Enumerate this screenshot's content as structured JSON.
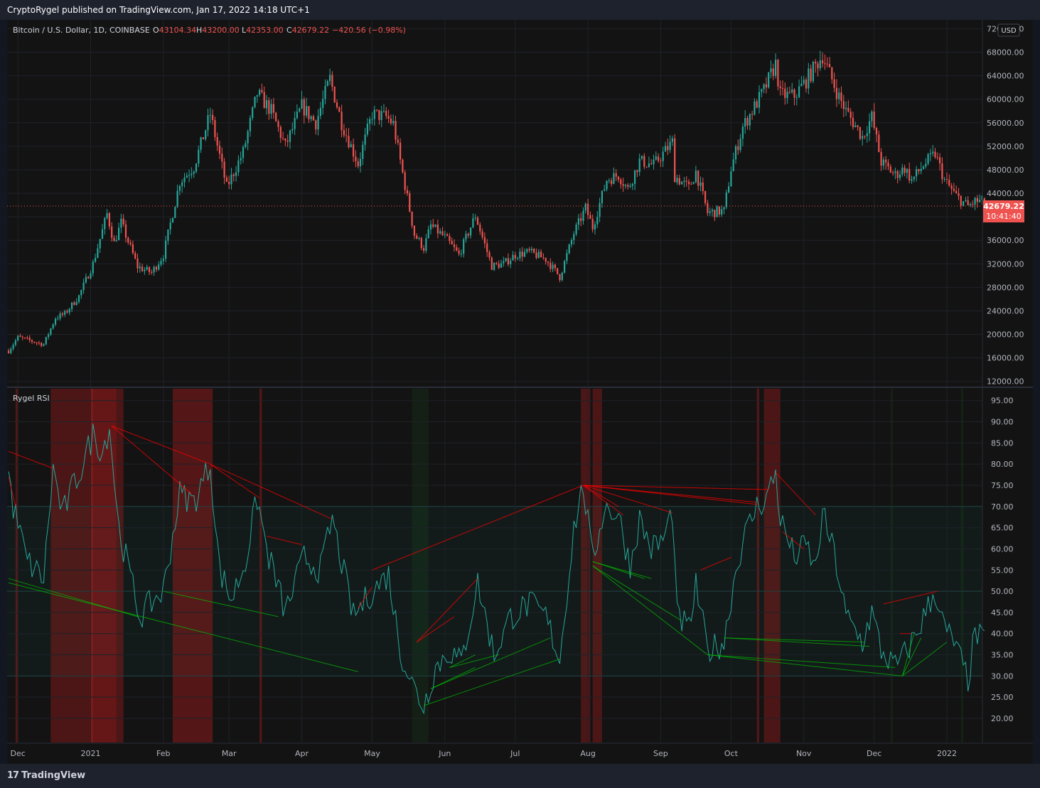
{
  "header": {
    "published": "CryptoRygel published on TradingView.com, Jan 17, 2022 14:18 UTC+1"
  },
  "footer": {
    "brand": "TradingView",
    "logo_glyph": "17"
  },
  "colors": {
    "up": "#26a69a",
    "down": "#ef5350",
    "rsi": "#26a69a",
    "bear_div": "#ff0000",
    "bull_div": "#00c000"
  },
  "main_pane": {
    "symbol": "Bitcoin / U.S. Dollar, 1D, COINBASE",
    "o_label": "O",
    "o_value": "43104.34",
    "h_label": "H",
    "h_value": "43200.00",
    "l_label": "L",
    "l_value": "42353.00",
    "c_label": "C",
    "c_value": "42679.22",
    "change": "−420.56 (−0.98%)",
    "currency": "USD",
    "last_price": "42679.22",
    "countdown": "10:41:40"
  },
  "rsi_pane": {
    "title": "Rygel RSI"
  },
  "chart_data": [
    {
      "type": "candlestick",
      "title": "Bitcoin / U.S. Dollar, 1D, COINBASE",
      "ylim": [
        12000,
        72000
      ],
      "y_ticks": [
        "72000.00",
        "68000.00",
        "64000.00",
        "60000.00",
        "56000.00",
        "52000.00",
        "48000.00",
        "44000.00",
        "40000.00",
        "36000.00",
        "32000.00",
        "28000.00",
        "24000.00",
        "20000.00",
        "16000.00",
        "12000.00"
      ],
      "x_ticks": [
        "Dec",
        "2021",
        "Feb",
        "Mar",
        "Apr",
        "May",
        "Jun",
        "Jul",
        "Aug",
        "Sep",
        "Oct",
        "Nov",
        "Dec",
        "2022"
      ],
      "close_anchors": [
        [
          "2020-11-27",
          17200
        ],
        [
          "2020-12-01",
          19500
        ],
        [
          "2020-12-12",
          18300
        ],
        [
          "2020-12-17",
          22800
        ],
        [
          "2020-12-21",
          23500
        ],
        [
          "2020-12-27",
          26500
        ],
        [
          "2021-01-02",
          32000
        ],
        [
          "2021-01-08",
          40500
        ],
        [
          "2021-01-11",
          35500
        ],
        [
          "2021-01-14",
          39000
        ],
        [
          "2021-01-21",
          31500
        ],
        [
          "2021-01-27",
          30500
        ],
        [
          "2021-02-01",
          33500
        ],
        [
          "2021-02-08",
          46000
        ],
        [
          "2021-02-14",
          48500
        ],
        [
          "2021-02-21",
          57500
        ],
        [
          "2021-02-28",
          45000
        ],
        [
          "2021-03-07",
          51000
        ],
        [
          "2021-03-13",
          61000
        ],
        [
          "2021-03-19",
          58000
        ],
        [
          "2021-03-25",
          52000
        ],
        [
          "2021-04-01",
          58800
        ],
        [
          "2021-04-07",
          56000
        ],
        [
          "2021-04-13",
          63500
        ],
        [
          "2021-04-18",
          56000
        ],
        [
          "2021-04-25",
          49000
        ],
        [
          "2021-05-01",
          57500
        ],
        [
          "2021-05-07",
          57000
        ],
        [
          "2021-05-10",
          55800
        ],
        [
          "2021-05-13",
          49500
        ],
        [
          "2021-05-19",
          37000
        ],
        [
          "2021-05-23",
          34700
        ],
        [
          "2021-05-26",
          38500
        ],
        [
          "2021-06-01",
          36500
        ],
        [
          "2021-06-07",
          33500
        ],
        [
          "2021-06-14",
          40200
        ],
        [
          "2021-06-21",
          31600
        ],
        [
          "2021-06-26",
          32000
        ],
        [
          "2021-07-01",
          33500
        ],
        [
          "2021-07-07",
          34000
        ],
        [
          "2021-07-14",
          32800
        ],
        [
          "2021-07-20",
          29800
        ],
        [
          "2021-07-26",
          37200
        ],
        [
          "2021-07-31",
          41500
        ],
        [
          "2021-08-03",
          38200
        ],
        [
          "2021-08-09",
          46300
        ],
        [
          "2021-08-14",
          47100
        ],
        [
          "2021-08-18",
          44700
        ],
        [
          "2021-08-23",
          49500
        ],
        [
          "2021-08-29",
          48800
        ],
        [
          "2021-09-06",
          52700
        ],
        [
          "2021-09-07",
          46900
        ],
        [
          "2021-09-13",
          44900
        ],
        [
          "2021-09-16",
          47700
        ],
        [
          "2021-09-21",
          40700
        ],
        [
          "2021-09-28",
          41000
        ],
        [
          "2021-10-01",
          48200
        ],
        [
          "2021-10-06",
          55300
        ],
        [
          "2021-10-15",
          61500
        ],
        [
          "2021-10-20",
          66000
        ],
        [
          "2021-10-22",
          60700
        ],
        [
          "2021-10-28",
          60600
        ],
        [
          "2021-11-02",
          63200
        ],
        [
          "2021-11-09",
          67500
        ],
        [
          "2021-11-12",
          64300
        ],
        [
          "2021-11-16",
          60400
        ],
        [
          "2021-11-19",
          58000
        ],
        [
          "2021-11-26",
          53600
        ],
        [
          "2021-11-30",
          57000
        ],
        [
          "2021-12-04",
          49300
        ],
        [
          "2021-12-10",
          47100
        ],
        [
          "2021-12-14",
          48300
        ],
        [
          "2021-12-17",
          46200
        ],
        [
          "2021-12-22",
          48800
        ],
        [
          "2021-12-27",
          50700
        ],
        [
          "2021-12-31",
          46200
        ],
        [
          "2022-01-05",
          43500
        ],
        [
          "2022-01-10",
          41800
        ],
        [
          "2022-01-13",
          42600
        ],
        [
          "2022-01-17",
          42679
        ]
      ]
    },
    {
      "type": "line",
      "title": "Rygel RSI",
      "ylim": [
        15,
        97
      ],
      "y_ticks": [
        "95.00",
        "90.00",
        "85.00",
        "80.00",
        "75.00",
        "70.00",
        "65.00",
        "60.00",
        "55.00",
        "50.00",
        "45.00",
        "40.00",
        "35.00",
        "30.00",
        "25.00",
        "20.00"
      ],
      "levels": {
        "overbought": 70,
        "oversold": 30,
        "mid": 50
      },
      "rsi_anchors": [
        [
          "2020-11-27",
          78
        ],
        [
          "2020-11-29",
          70
        ],
        [
          "2020-12-05",
          57
        ],
        [
          "2020-12-12",
          53
        ],
        [
          "2020-12-16",
          79
        ],
        [
          "2020-12-20",
          68
        ],
        [
          "2020-12-24",
          74
        ],
        [
          "2020-12-28",
          79
        ],
        [
          "2021-01-02",
          87
        ],
        [
          "2021-01-06",
          83
        ],
        [
          "2021-01-09",
          89
        ],
        [
          "2021-01-13",
          65
        ],
        [
          "2021-01-22",
          44
        ],
        [
          "2021-01-28",
          48
        ],
        [
          "2021-02-01",
          50
        ],
        [
          "2021-02-08",
          73
        ],
        [
          "2021-02-14",
          71
        ],
        [
          "2021-02-21",
          80
        ],
        [
          "2021-02-25",
          55
        ],
        [
          "2021-03-02",
          48
        ],
        [
          "2021-03-08",
          57
        ],
        [
          "2021-03-13",
          72
        ],
        [
          "2021-03-17",
          60
        ],
        [
          "2021-03-25",
          45
        ],
        [
          "2021-04-02",
          58
        ],
        [
          "2021-04-09",
          55
        ],
        [
          "2021-04-14",
          67
        ],
        [
          "2021-04-23",
          44
        ],
        [
          "2021-05-01",
          50
        ],
        [
          "2021-05-08",
          54
        ],
        [
          "2021-05-13",
          36
        ],
        [
          "2021-05-19",
          27
        ],
        [
          "2021-05-23",
          23
        ],
        [
          "2021-05-28",
          32
        ],
        [
          "2021-06-03",
          36
        ],
        [
          "2021-06-08",
          33
        ],
        [
          "2021-06-15",
          52
        ],
        [
          "2021-06-22",
          35
        ],
        [
          "2021-06-29",
          44
        ],
        [
          "2021-07-07",
          47
        ],
        [
          "2021-07-14",
          44
        ],
        [
          "2021-07-20",
          34
        ],
        [
          "2021-07-26",
          65
        ],
        [
          "2021-07-30",
          75
        ],
        [
          "2021-08-03",
          57
        ],
        [
          "2021-08-08",
          70
        ],
        [
          "2021-08-14",
          68
        ],
        [
          "2021-08-19",
          56
        ],
        [
          "2021-08-23",
          67
        ],
        [
          "2021-08-28",
          60
        ],
        [
          "2021-09-02",
          62
        ],
        [
          "2021-09-06",
          69
        ],
        [
          "2021-09-08",
          44
        ],
        [
          "2021-09-13",
          41
        ],
        [
          "2021-09-16",
          51
        ],
        [
          "2021-09-21",
          36
        ],
        [
          "2021-09-28",
          38
        ],
        [
          "2021-10-02",
          52
        ],
        [
          "2021-10-06",
          62
        ],
        [
          "2021-10-12",
          70
        ],
        [
          "2021-10-16",
          72
        ],
        [
          "2021-10-20",
          78
        ],
        [
          "2021-10-22",
          67
        ],
        [
          "2021-10-28",
          58
        ],
        [
          "2021-11-02",
          61
        ],
        [
          "2021-11-06",
          55
        ],
        [
          "2021-11-09",
          68
        ],
        [
          "2021-11-14",
          59
        ],
        [
          "2021-11-19",
          44
        ],
        [
          "2021-11-26",
          38
        ],
        [
          "2021-11-30",
          45
        ],
        [
          "2021-12-04",
          36
        ],
        [
          "2021-12-10",
          32
        ],
        [
          "2021-12-14",
          35
        ],
        [
          "2021-12-19",
          40
        ],
        [
          "2021-12-23",
          45
        ],
        [
          "2021-12-27",
          50
        ],
        [
          "2021-12-31",
          41
        ],
        [
          "2022-01-04",
          38
        ],
        [
          "2022-01-08",
          32
        ],
        [
          "2022-01-10",
          29
        ],
        [
          "2022-01-13",
          40
        ],
        [
          "2022-01-17",
          38
        ]
      ]
    }
  ]
}
